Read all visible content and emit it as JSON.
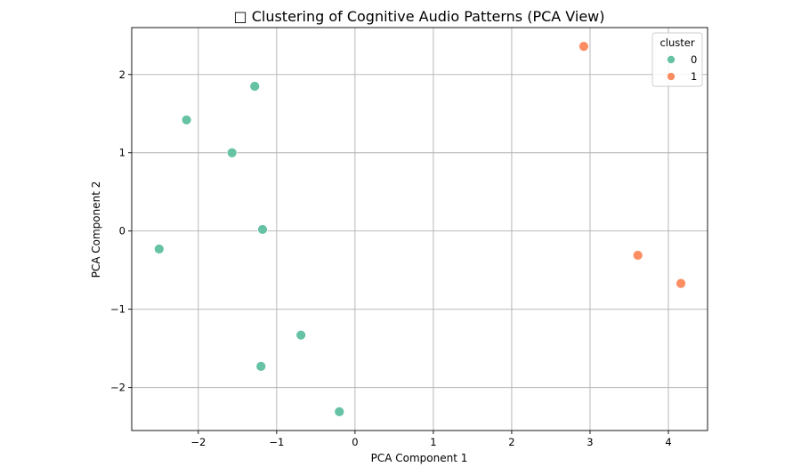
{
  "chart_data": {
    "type": "scatter",
    "title": "□ Clustering of Cognitive Audio Patterns (PCA View)",
    "xlabel": "PCA Component 1",
    "ylabel": "PCA Component 2",
    "xlim": [
      -2.85,
      4.5
    ],
    "ylim": [
      -2.55,
      2.6
    ],
    "xticks": [
      -2,
      -1,
      0,
      1,
      2,
      3,
      4
    ],
    "yticks": [
      -2,
      -1,
      0,
      1,
      2
    ],
    "xtick_labels": [
      "−2",
      "−1",
      "0",
      "1",
      "2",
      "3",
      "4"
    ],
    "ytick_labels": [
      "−2",
      "−1",
      "0",
      "1",
      "2"
    ],
    "grid": true,
    "legend": {
      "title": "cluster",
      "position": "top-right"
    },
    "series": [
      {
        "name": "0",
        "color": "#66c2a5",
        "points": [
          {
            "x": -2.5,
            "y": -0.23
          },
          {
            "x": -2.15,
            "y": 1.42
          },
          {
            "x": -1.57,
            "y": 1.0
          },
          {
            "x": -1.28,
            "y": 1.85
          },
          {
            "x": -1.18,
            "y": 0.02
          },
          {
            "x": -0.69,
            "y": -1.33
          },
          {
            "x": -1.2,
            "y": -1.73
          },
          {
            "x": -0.2,
            "y": -2.31
          }
        ]
      },
      {
        "name": "1",
        "color": "#fc8d62",
        "points": [
          {
            "x": 2.92,
            "y": 2.36
          },
          {
            "x": 3.61,
            "y": -0.31
          },
          {
            "x": 4.16,
            "y": -0.67
          }
        ]
      }
    ]
  }
}
